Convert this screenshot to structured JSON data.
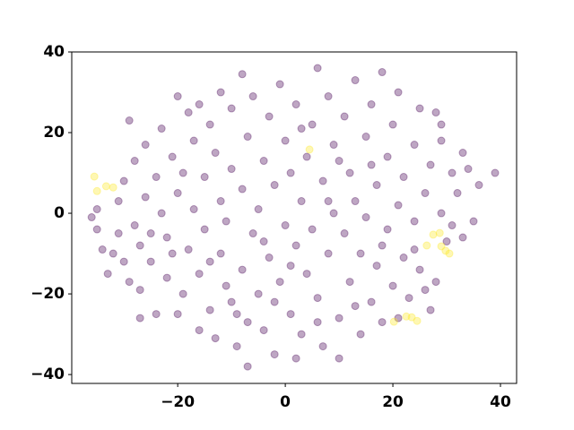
{
  "chart_data": {
    "type": "scatter",
    "xlim": [
      -39.7,
      43
    ],
    "ylim": [
      -42.2,
      40
    ],
    "xticks": [
      {
        "value": -20,
        "label": "−20"
      },
      0,
      20,
      40
    ],
    "yticks": [
      {
        "value": -40,
        "label": "−40"
      },
      {
        "value": -20,
        "label": "−20"
      },
      0,
      20,
      40
    ],
    "series": [
      {
        "color": "#440154",
        "x": [
          -36,
          -35,
          -34,
          -33,
          -31,
          -31,
          -30,
          -30,
          -29,
          -28,
          -28,
          -27,
          -27,
          -26,
          -26,
          -25,
          -24,
          -24,
          -23,
          -23,
          -22,
          -22,
          -21,
          -20,
          -20,
          -20,
          -19,
          -18,
          -18,
          -17,
          -17,
          -16,
          -16,
          -15,
          -15,
          -14,
          -14,
          -13,
          -13,
          -12,
          -12,
          -12,
          -11,
          -11,
          -10,
          -10,
          -9,
          -9,
          -8,
          -8,
          -8,
          -7,
          -7,
          -6,
          -6,
          -5,
          -5,
          -4,
          -4,
          -3,
          -3,
          -2,
          -2,
          -1,
          -1,
          0,
          0,
          1,
          1,
          2,
          2,
          2,
          3,
          3,
          4,
          4,
          5,
          5,
          6,
          6,
          7,
          7,
          8,
          8,
          9,
          9,
          10,
          10,
          11,
          11,
          12,
          12,
          13,
          13,
          14,
          14,
          15,
          15,
          16,
          16,
          17,
          17,
          18,
          18,
          19,
          19,
          20,
          20,
          21,
          21,
          22,
          22,
          23,
          24,
          24,
          25,
          25,
          26,
          27,
          27,
          28,
          28,
          29,
          29,
          30,
          31,
          31,
          32,
          33,
          34,
          35,
          36,
          39,
          -32,
          -29,
          -25,
          -21,
          -19,
          -16,
          -14,
          -10,
          -7,
          -4,
          -2,
          1,
          3,
          6,
          8,
          10,
          13,
          16,
          18,
          21,
          24,
          26,
          29,
          33,
          -27,
          -35
        ],
        "values": [
          -1,
          1,
          -9,
          -15,
          -5,
          3,
          -12,
          8,
          23,
          -3,
          13,
          -19,
          -8,
          4,
          17,
          -12,
          -25,
          9,
          0,
          21,
          -16,
          -6,
          14,
          -25,
          5,
          29,
          -20,
          -9,
          25,
          1,
          18,
          -29,
          -15,
          9,
          -4,
          -24,
          22,
          15,
          -31,
          -10,
          3,
          30,
          -18,
          -2,
          11,
          26,
          -33,
          -25,
          -14,
          6,
          34.5,
          -38,
          19,
          -5,
          29,
          -20,
          1,
          13,
          -29,
          -11,
          24,
          -35,
          7,
          -17,
          32,
          -3,
          18,
          -25,
          10,
          -36,
          -8,
          27,
          3,
          -30,
          14,
          -15,
          22,
          -4,
          36,
          -21,
          8,
          -33,
          29,
          -10,
          0,
          17,
          -36,
          -26,
          24,
          -5,
          10,
          -17,
          33,
          3,
          -30,
          -10,
          19,
          -1,
          27,
          -22,
          7,
          -13,
          35,
          -27,
          14,
          -4,
          -18,
          22,
          2,
          30,
          -11,
          9,
          -21,
          17,
          -2,
          26,
          -14,
          5,
          -24,
          12,
          -17,
          25,
          0,
          18,
          -7,
          10,
          -3,
          5,
          -6,
          11,
          -2,
          7,
          10,
          -10,
          -17,
          -5,
          -10,
          10,
          27,
          -12,
          -22,
          -27,
          -7,
          -22,
          -13,
          21,
          -27,
          3,
          13,
          -23,
          12,
          -8,
          -26,
          -9,
          -19,
          22,
          15,
          -26,
          -4
        ]
      },
      {
        "color": "#fde725",
        "x": [
          -35.5,
          -35,
          -33.3,
          -32,
          4.5,
          26.3,
          27.5,
          28.7,
          29,
          29.8,
          30.5,
          20.2,
          22.5,
          23.5,
          24.5
        ],
        "values": [
          9.1,
          5.5,
          6.7,
          6.4,
          15.8,
          -8,
          -5.3,
          -4.9,
          -8.2,
          -9.3,
          -10,
          -26.9,
          -25.6,
          -25.8,
          -26.7
        ]
      }
    ]
  }
}
